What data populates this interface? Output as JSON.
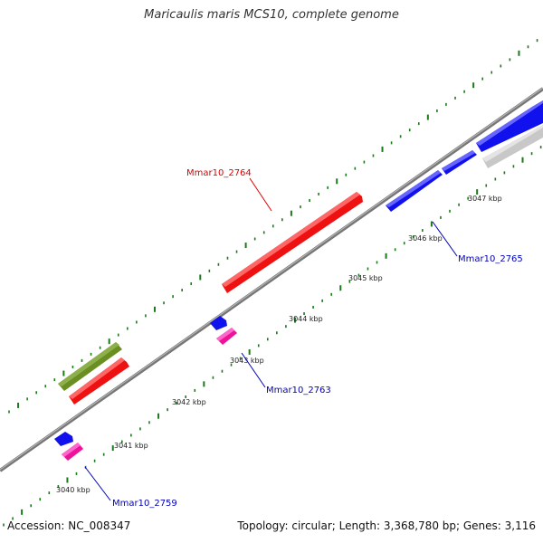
{
  "title": "Maricaulis maris MCS10, complete genome",
  "footer": {
    "accession": "Accession: NC_008347",
    "topology": "Topology: circular; Length: 3,368,780 bp; Genes: 3,116"
  },
  "colors": {
    "red_gene": "#ee1111",
    "blue_gene": "#1111ee",
    "pink_gene": "#ee1199",
    "olive_gene": "#6b8e23",
    "grey_gene": "#c8c8c8",
    "backbone": "#888888",
    "tick": "#1a7a1a",
    "red_label": "#dd0000",
    "blue_label": "#0000bb"
  },
  "ticks": [
    {
      "kbp": 3040,
      "label": "3040 kbp"
    },
    {
      "kbp": 3041,
      "label": "3041 kbp"
    },
    {
      "kbp": 3042,
      "label": "3042 kbp"
    },
    {
      "kbp": 3043,
      "label": "3043 kbp"
    },
    {
      "kbp": 3044,
      "label": "3044 kbp"
    },
    {
      "kbp": 3045,
      "label": "3045 kbp"
    },
    {
      "kbp": 3046,
      "label": "3046 kbp"
    },
    {
      "kbp": 3047,
      "label": "3047 kbp"
    }
  ],
  "gene_labels": [
    {
      "id": "red",
      "text": "Mmar10_2764"
    },
    {
      "id": "blue1",
      "text": "Mmar10_2765"
    },
    {
      "id": "blue2",
      "text": "Mmar10_2763"
    },
    {
      "id": "blue3",
      "text": "Mmar10_2759"
    }
  ]
}
